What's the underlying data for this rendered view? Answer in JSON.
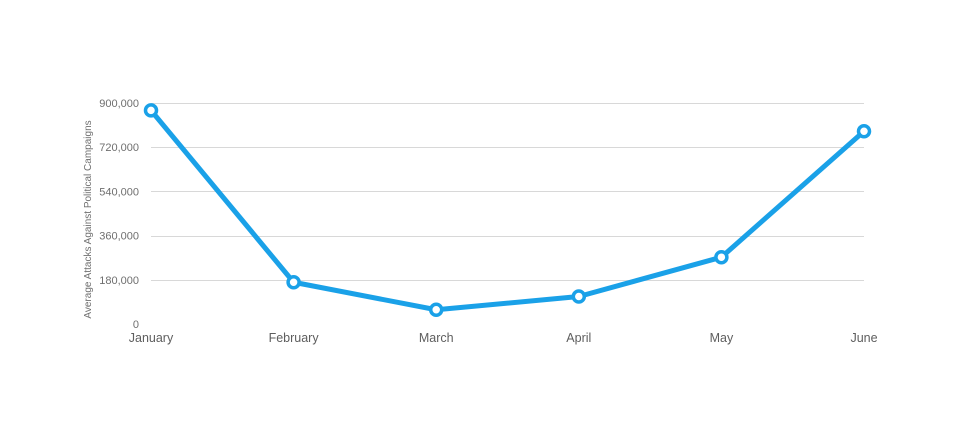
{
  "chart_data": {
    "type": "line",
    "title": "",
    "xlabel": "",
    "ylabel": "Average Attacks Against Political Campaigns",
    "categories": [
      "January",
      "February",
      "March",
      "April",
      "May",
      "June"
    ],
    "series": [
      {
        "values": [
          870000,
          170000,
          58000,
          112000,
          272000,
          785000
        ]
      }
    ],
    "ylim": [
      0,
      900000
    ],
    "yticks": [
      0,
      180000,
      360000,
      540000,
      720000,
      900000
    ],
    "ytick_labels": [
      "0",
      "180,000",
      "360,000",
      "540,000",
      "720,000",
      "900,000"
    ],
    "grid": true,
    "legend": "none",
    "colors": {
      "line": "#1aa1e8",
      "marker_fill": "#ffffff",
      "grid": "#d8d8d8"
    }
  }
}
